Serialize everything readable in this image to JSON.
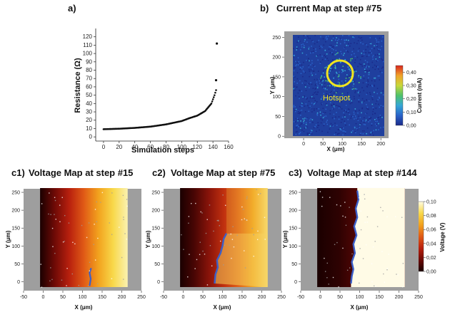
{
  "panels": {
    "a": {
      "letter": "a)"
    },
    "b": {
      "letter": "b)",
      "title": "Current Map at step #75"
    },
    "c1": {
      "letter": "c1)",
      "title": "Voltage Map at step #15"
    },
    "c2": {
      "letter": "c2)",
      "title": "Voltage Map at step #75"
    },
    "c3": {
      "letter": "c3)",
      "title": "Voltage Map at step #144"
    }
  },
  "annotation": {
    "hotspot": "Hotspot"
  },
  "colors": {
    "plot_bg": "#9e9e9e",
    "hotspot_ring": "#f2e51f",
    "boundary": "#3b5fc9",
    "current_scale": [
      "#1a2a8a",
      "#2a63c9",
      "#35a7d6",
      "#4fc26a",
      "#c8d83a",
      "#f0a22a",
      "#d8261e"
    ],
    "voltage_scale": [
      "#1a0000",
      "#6e0a06",
      "#b8200e",
      "#e05a16",
      "#f2a21e",
      "#f8d84a",
      "#fffbe0"
    ]
  },
  "chart_data": [
    {
      "type": "scatter",
      "xlabel": "Simulation steps",
      "ylabel": "Resistance (Ω)",
      "xlim": [
        -10,
        160
      ],
      "ylim": [
        -5,
        130
      ],
      "xticks": [
        0,
        20,
        40,
        60,
        80,
        100,
        120,
        140,
        160
      ],
      "yticks": [
        0,
        10,
        20,
        30,
        40,
        50,
        60,
        70,
        80,
        90,
        100,
        110,
        120
      ],
      "curve_points": [
        [
          0,
          9.2
        ],
        [
          20,
          9.8
        ],
        [
          40,
          10.8
        ],
        [
          60,
          12.3
        ],
        [
          80,
          15
        ],
        [
          100,
          19
        ],
        [
          110,
          22.5
        ],
        [
          120,
          25.5
        ],
        [
          130,
          31
        ],
        [
          138,
          40
        ],
        [
          142,
          50
        ],
        [
          144,
          56
        ]
      ],
      "outliers": [
        [
          144,
          68
        ],
        [
          145,
          112
        ]
      ],
      "markers": [
        "black circles"
      ]
    },
    {
      "type": "heatmap",
      "title": "Current Map at step #75",
      "xlabel": "X (μm)",
      "ylabel": "Y (μm)",
      "xlim": [
        -50,
        220
      ],
      "ylim": [
        -5,
        265
      ],
      "xticks": [
        0,
        50,
        100,
        150,
        200
      ],
      "yticks": [
        0,
        50,
        100,
        150,
        200,
        250
      ],
      "colorbar": {
        "label": "Current (mA)",
        "ticks": [
          "0,00",
          "0,10",
          "0,20",
          "0,30",
          "0,40"
        ],
        "range": [
          0,
          0.45
        ]
      },
      "annotation_circle_center": [
        95,
        148
      ],
      "annotation_text": "Hotspot"
    },
    {
      "type": "heatmap",
      "title": "Voltage Map at step #15",
      "xlabel": "X (μm)",
      "ylabel": "Y (μm)",
      "xlim": [
        -50,
        250
      ],
      "ylim": [
        -25,
        260
      ],
      "xticks": [
        -50,
        0,
        50,
        100,
        150,
        200,
        250
      ],
      "yticks": [
        0,
        50,
        100,
        150,
        200,
        250
      ],
      "step": 15,
      "boundary": "small damaged region near x≈120 μm, y<40 μm"
    },
    {
      "type": "heatmap",
      "title": "Voltage Map at step #75",
      "xlabel": "X (μm)",
      "ylabel": "Y (μm)",
      "xlim": [
        -50,
        250
      ],
      "ylim": [
        -25,
        260
      ],
      "xticks": [
        -50,
        0,
        50,
        100,
        150,
        200,
        250
      ],
      "yticks": [
        0,
        50,
        100,
        150,
        200,
        250
      ],
      "step": 75,
      "boundary": "jagged front from x≈80 at bottom to x≈110 at y≈135 μm"
    },
    {
      "type": "heatmap",
      "title": "Voltage Map at step #144",
      "xlabel": "X (μm)",
      "ylabel": "Y (μm)",
      "xlim": [
        -50,
        250
      ],
      "ylim": [
        -25,
        260
      ],
      "xticks": [
        -50,
        0,
        50,
        100,
        150,
        200,
        250
      ],
      "yticks": [
        0,
        50,
        100,
        150,
        200,
        250
      ],
      "step": 144,
      "boundary": "jagged front spanning the full height near x≈75–100 μm",
      "colorbar": {
        "label": "Voltage (V)",
        "ticks": [
          "0,00",
          "0,02",
          "0,04",
          "0,06",
          "0,08",
          "0,10"
        ],
        "range": [
          0,
          0.1
        ]
      }
    }
  ]
}
